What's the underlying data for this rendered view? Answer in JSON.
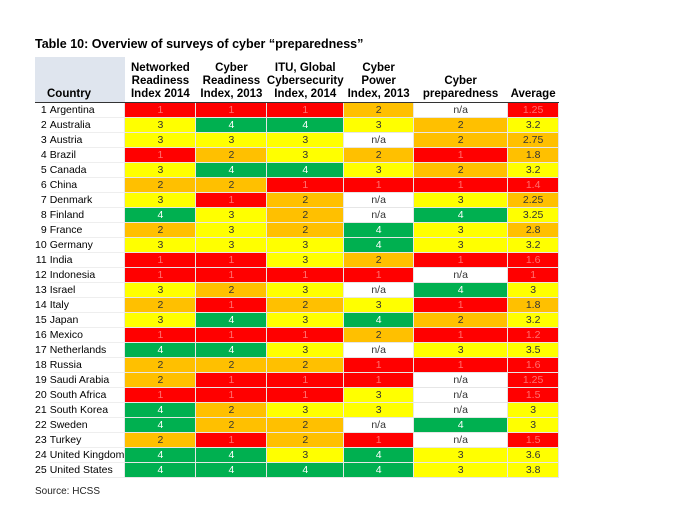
{
  "title": "Table 10: Overview of surveys of cyber “preparedness”",
  "table": {
    "headers": [
      "Country",
      "Networked\nReadiness\nIndex 2014",
      "Cyber\nReadiness\nIndex, 2013",
      "ITU, Global\nCybersecurity\nIndex, 2014",
      "Cyber Power\nIndex, 2013",
      "Cyber\npreparedness",
      "Average"
    ],
    "rows": [
      {
        "rank": 1,
        "country": "Argentina",
        "cells": [
          1,
          1,
          1,
          2,
          "n/a",
          1.25
        ],
        "colors": [
          "#ff0000",
          "#ff0000",
          "#ff0000",
          "#ffc000",
          "#ffffff",
          "#ff0000"
        ]
      },
      {
        "rank": 2,
        "country": "Australia",
        "cells": [
          3,
          4,
          4,
          3,
          2,
          3.2
        ],
        "colors": [
          "#ffff00",
          "#00b050",
          "#00b050",
          "#ffff00",
          "#ffc000",
          "#ffff00"
        ]
      },
      {
        "rank": 3,
        "country": "Austria",
        "cells": [
          3,
          3,
          3,
          "n/a",
          2,
          2.75
        ],
        "colors": [
          "#ffff00",
          "#ffff00",
          "#ffff00",
          "#ffffff",
          "#ffc000",
          "#ffc000"
        ]
      },
      {
        "rank": 4,
        "country": "Brazil",
        "cells": [
          1,
          2,
          3,
          2,
          1,
          1.8
        ],
        "colors": [
          "#ff0000",
          "#ffc000",
          "#ffff00",
          "#ffc000",
          "#ff0000",
          "#ffc000"
        ]
      },
      {
        "rank": 5,
        "country": "Canada",
        "cells": [
          3,
          4,
          4,
          3,
          2,
          3.2
        ],
        "colors": [
          "#ffff00",
          "#00b050",
          "#00b050",
          "#ffff00",
          "#ffc000",
          "#ffff00"
        ]
      },
      {
        "rank": 6,
        "country": "China",
        "cells": [
          2,
          2,
          1,
          1,
          1,
          1.4
        ],
        "colors": [
          "#ffc000",
          "#ffc000",
          "#ff0000",
          "#ff0000",
          "#ff0000",
          "#ff0000"
        ]
      },
      {
        "rank": 7,
        "country": "Denmark",
        "cells": [
          3,
          1,
          2,
          "n/a",
          3,
          2.25
        ],
        "colors": [
          "#ffff00",
          "#ff0000",
          "#ffc000",
          "#ffffff",
          "#ffff00",
          "#ffc000"
        ]
      },
      {
        "rank": 8,
        "country": "Finland",
        "cells": [
          4,
          3,
          2,
          "n/a",
          4,
          3.25
        ],
        "colors": [
          "#00b050",
          "#ffff00",
          "#ffc000",
          "#ffffff",
          "#00b050",
          "#ffff00"
        ]
      },
      {
        "rank": 9,
        "country": "France",
        "cells": [
          2,
          3,
          2,
          4,
          3,
          2.8
        ],
        "colors": [
          "#ffc000",
          "#ffff00",
          "#ffc000",
          "#00b050",
          "#ffff00",
          "#ffc000"
        ]
      },
      {
        "rank": 10,
        "country": "Germany",
        "cells": [
          3,
          3,
          3,
          4,
          3,
          3.2
        ],
        "colors": [
          "#ffff00",
          "#ffff00",
          "#ffff00",
          "#00b050",
          "#ffff00",
          "#ffff00"
        ]
      },
      {
        "rank": 11,
        "country": "India",
        "cells": [
          1,
          1,
          3,
          2,
          1,
          1.6
        ],
        "colors": [
          "#ff0000",
          "#ff0000",
          "#ffff00",
          "#ffc000",
          "#ff0000",
          "#ff0000"
        ]
      },
      {
        "rank": 12,
        "country": "Indonesia",
        "cells": [
          1,
          1,
          1,
          1,
          "n/a",
          1
        ],
        "colors": [
          "#ff0000",
          "#ff0000",
          "#ff0000",
          "#ff0000",
          "#ffffff",
          "#ff0000"
        ]
      },
      {
        "rank": 13,
        "country": "Israel",
        "cells": [
          3,
          2,
          3,
          "n/a",
          4,
          3
        ],
        "colors": [
          "#ffff00",
          "#ffc000",
          "#ffff00",
          "#ffffff",
          "#00b050",
          "#ffff00"
        ]
      },
      {
        "rank": 14,
        "country": "Italy",
        "cells": [
          2,
          1,
          2,
          3,
          1,
          1.8
        ],
        "colors": [
          "#ffc000",
          "#ff0000",
          "#ffc000",
          "#ffff00",
          "#ff0000",
          "#ffc000"
        ]
      },
      {
        "rank": 15,
        "country": "Japan",
        "cells": [
          3,
          4,
          3,
          4,
          2,
          3.2
        ],
        "colors": [
          "#ffff00",
          "#00b050",
          "#ffff00",
          "#00b050",
          "#ffc000",
          "#ffff00"
        ]
      },
      {
        "rank": 16,
        "country": "Mexico",
        "cells": [
          1,
          1,
          1,
          2,
          1,
          1.2
        ],
        "colors": [
          "#ff0000",
          "#ff0000",
          "#ff0000",
          "#ffc000",
          "#ff0000",
          "#ff0000"
        ]
      },
      {
        "rank": 17,
        "country": "Netherlands",
        "cells": [
          4,
          4,
          3,
          "n/a",
          3,
          3.5
        ],
        "colors": [
          "#00b050",
          "#00b050",
          "#ffff00",
          "#ffffff",
          "#ffff00",
          "#ffff00"
        ]
      },
      {
        "rank": 18,
        "country": "Russia",
        "cells": [
          2,
          2,
          2,
          1,
          1,
          1.6
        ],
        "colors": [
          "#ffc000",
          "#ffc000",
          "#ffc000",
          "#ff0000",
          "#ff0000",
          "#ff0000"
        ]
      },
      {
        "rank": 19,
        "country": "Saudi Arabia",
        "cells": [
          2,
          1,
          1,
          1,
          "n/a",
          1.25
        ],
        "colors": [
          "#ffc000",
          "#ff0000",
          "#ff0000",
          "#ff0000",
          "#ffffff",
          "#ff0000"
        ]
      },
      {
        "rank": 20,
        "country": "South Africa",
        "cells": [
          1,
          1,
          1,
          3,
          "n/a",
          1.5
        ],
        "colors": [
          "#ff0000",
          "#ff0000",
          "#ff0000",
          "#ffff00",
          "#ffffff",
          "#ff0000"
        ]
      },
      {
        "rank": 21,
        "country": "South Korea",
        "cells": [
          4,
          2,
          3,
          3,
          "n/a",
          3
        ],
        "colors": [
          "#00b050",
          "#ffc000",
          "#ffff00",
          "#ffff00",
          "#ffffff",
          "#ffff00"
        ]
      },
      {
        "rank": 22,
        "country": "Sweden",
        "cells": [
          4,
          2,
          2,
          "n/a",
          4,
          3
        ],
        "colors": [
          "#00b050",
          "#ffc000",
          "#ffc000",
          "#ffffff",
          "#00b050",
          "#ffff00"
        ]
      },
      {
        "rank": 23,
        "country": "Turkey",
        "cells": [
          2,
          1,
          2,
          1,
          "n/a",
          1.5
        ],
        "colors": [
          "#ffc000",
          "#ff0000",
          "#ffc000",
          "#ff0000",
          "#ffffff",
          "#ff0000"
        ]
      },
      {
        "rank": 24,
        "country": "United Kingdom",
        "cells": [
          4,
          4,
          3,
          4,
          3,
          3.6
        ],
        "colors": [
          "#00b050",
          "#00b050",
          "#ffff00",
          "#00b050",
          "#ffff00",
          "#ffff00"
        ]
      },
      {
        "rank": 25,
        "country": "United States",
        "cells": [
          4,
          4,
          4,
          4,
          3,
          3.8
        ],
        "colors": [
          "#00b050",
          "#00b050",
          "#00b050",
          "#00b050",
          "#ffff00",
          "#ffff00"
        ]
      }
    ]
  },
  "source": "Source: HCSS"
}
